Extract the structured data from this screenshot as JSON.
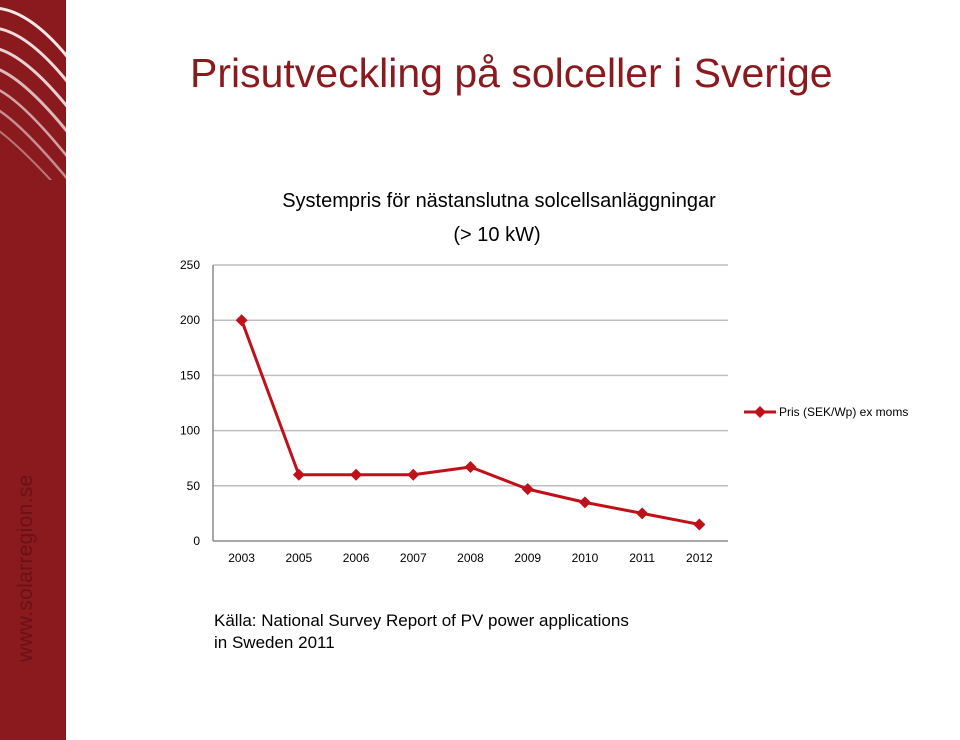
{
  "slide": {
    "title": "Prisutveckling på solceller i Sverige",
    "brand": "www.solarregion.se",
    "source_line1": "Källa: National Survey Report of PV power applications",
    "source_line2": "in Sweden 2011"
  },
  "colors": {
    "accent": "#8b1a1f",
    "series": "#c0101a",
    "grid": "#bfbfbf"
  },
  "chart_data": {
    "type": "line",
    "title_line1": "Systempris för nästanslutna  solcellsanläggningar",
    "title_line2": "(> 10 kW)",
    "categories": [
      "2003",
      "2005",
      "2006",
      "2007",
      "2008",
      "2009",
      "2010",
      "2011",
      "2012"
    ],
    "series": [
      {
        "name": "Pris (SEK/Wp) ex moms",
        "values": [
          200,
          60,
          60,
          60,
          67,
          47,
          35,
          25,
          15
        ]
      }
    ],
    "ylim": [
      0,
      250
    ],
    "yticks": [
      0,
      50,
      100,
      150,
      200,
      250
    ],
    "grid": true,
    "legend": "right",
    "marker": "diamond"
  }
}
